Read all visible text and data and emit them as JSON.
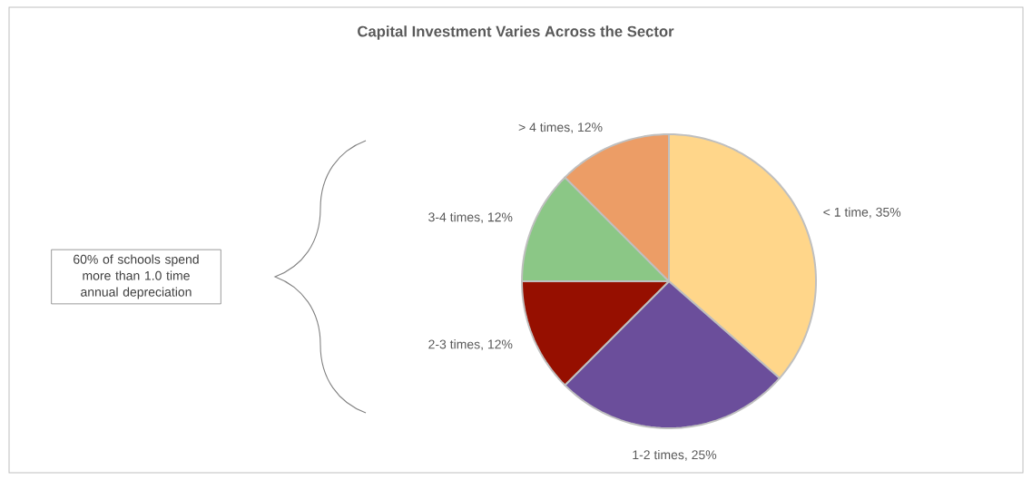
{
  "chart_data": {
    "type": "pie",
    "title": "Capital Investment Varies Across the Sector",
    "categories": [
      "< 1 time, 35%",
      "1-2 times, 25%",
      "2-3 times, 12%",
      "3-4 times, 12%",
      "> 4 times, 12%"
    ],
    "values": [
      35,
      25,
      12,
      12,
      12
    ],
    "colors": [
      "#ffd68a",
      "#6b4e9b",
      "#960f00",
      "#8bc786",
      "#ec9d66"
    ],
    "annotations": [
      "60% of schools spend more than 1.0 time annual depreciation"
    ]
  }
}
